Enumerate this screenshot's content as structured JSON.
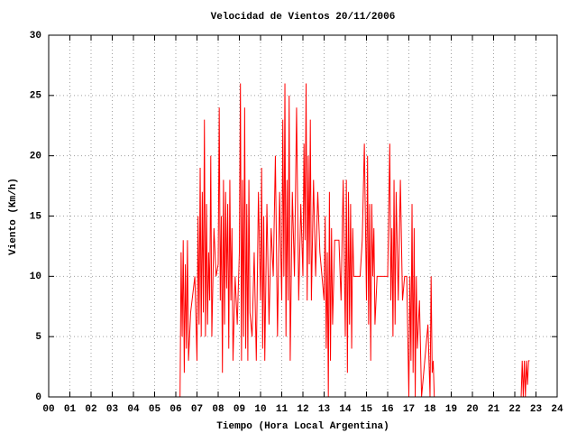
{
  "chart_data": {
    "type": "line",
    "title": "Velocidad de Vientos 20/11/2006",
    "x_label": "Tiempo (Hora Local Argentina)",
    "y_label": "Viento (Km/h)",
    "grid": true,
    "xlim": [
      0,
      24
    ],
    "ylim": [
      0,
      30
    ],
    "yticks": [
      0,
      5,
      10,
      15,
      20,
      25,
      30
    ],
    "xticks": [
      {
        "value": 0,
        "label": "00"
      },
      {
        "value": 1,
        "label": "01"
      },
      {
        "value": 2,
        "label": "02"
      },
      {
        "value": 3,
        "label": "03"
      },
      {
        "value": 4,
        "label": "04"
      },
      {
        "value": 5,
        "label": "05"
      },
      {
        "value": 6,
        "label": "06"
      },
      {
        "value": 7,
        "label": "07"
      },
      {
        "value": 8,
        "label": "08"
      },
      {
        "value": 9,
        "label": "09"
      },
      {
        "value": 10,
        "label": "10"
      },
      {
        "value": 11,
        "label": "11"
      },
      {
        "value": 12,
        "label": "12"
      },
      {
        "value": 13,
        "label": "13"
      },
      {
        "value": 14,
        "label": "14"
      },
      {
        "value": 15,
        "label": "15"
      },
      {
        "value": 16,
        "label": "16"
      },
      {
        "value": 17,
        "label": "17"
      },
      {
        "value": 18,
        "label": "18"
      },
      {
        "value": 19,
        "label": "19"
      },
      {
        "value": 20,
        "label": "20"
      },
      {
        "value": 21,
        "label": "21"
      },
      {
        "value": 22,
        "label": "22"
      },
      {
        "value": 23,
        "label": "23"
      },
      {
        "value": 24,
        "label": "24"
      }
    ],
    "x": [
      6.2,
      6.25,
      6.3,
      6.35,
      6.4,
      6.45,
      6.5,
      6.55,
      6.6,
      6.7,
      6.9,
      7.0,
      7.05,
      7.1,
      7.15,
      7.2,
      7.25,
      7.3,
      7.35,
      7.4,
      7.45,
      7.5,
      7.55,
      7.6,
      7.65,
      7.7,
      7.8,
      7.9,
      8.0,
      8.05,
      8.1,
      8.15,
      8.2,
      8.25,
      8.3,
      8.35,
      8.4,
      8.45,
      8.5,
      8.55,
      8.6,
      8.65,
      8.7,
      8.8,
      8.9,
      9.0,
      9.05,
      9.1,
      9.15,
      9.2,
      9.25,
      9.3,
      9.35,
      9.4,
      9.45,
      9.5,
      9.6,
      9.7,
      9.8,
      9.9,
      10.0,
      10.05,
      10.1,
      10.15,
      10.2,
      10.3,
      10.4,
      10.5,
      10.6,
      10.7,
      10.8,
      10.9,
      11.0,
      11.05,
      11.1,
      11.15,
      11.2,
      11.25,
      11.3,
      11.35,
      11.4,
      11.5,
      11.6,
      11.7,
      11.8,
      11.9,
      12.0,
      12.05,
      12.1,
      12.15,
      12.2,
      12.25,
      12.3,
      12.35,
      12.4,
      12.5,
      12.6,
      12.7,
      12.8,
      13.0,
      13.05,
      13.1,
      13.15,
      13.2,
      13.25,
      13.3,
      13.35,
      13.4,
      13.5,
      13.6,
      13.7,
      13.8,
      13.9,
      14.0,
      14.05,
      14.1,
      14.15,
      14.2,
      14.25,
      14.3,
      14.35,
      14.4,
      14.5,
      14.6,
      14.7,
      14.8,
      14.9,
      15.0,
      15.05,
      15.1,
      15.15,
      15.2,
      15.25,
      15.3,
      15.35,
      15.4,
      15.5,
      15.7,
      15.9,
      16.0,
      16.1,
      16.15,
      16.2,
      16.25,
      16.3,
      16.35,
      16.4,
      16.5,
      16.6,
      16.7,
      16.8,
      16.9,
      17.0,
      17.05,
      17.1,
      17.15,
      17.2,
      17.25,
      17.3,
      17.35,
      17.4,
      17.5,
      17.6,
      17.7,
      17.8,
      17.9,
      18.0,
      18.05,
      18.1,
      18.15,
      18.2,
      18.3,
      20.0,
      22.3,
      22.35,
      22.4,
      22.45,
      22.5,
      22.55,
      22.6,
      22.65,
      22.7
    ],
    "series": [
      {
        "color": "#ff0000",
        "values": [
          0,
          12,
          5,
          13,
          2,
          11,
          4,
          13,
          3,
          7,
          10,
          3,
          15,
          6,
          19,
          5,
          17,
          7,
          23,
          5,
          16,
          6,
          12,
          8,
          20,
          5,
          14,
          10,
          11,
          24,
          8,
          15,
          2,
          18,
          6,
          17,
          9,
          16,
          4,
          18,
          8,
          14,
          3,
          10,
          6,
          12,
          26,
          3,
          18,
          5,
          24,
          4,
          16,
          3,
          18,
          7,
          5,
          12,
          3,
          17,
          8,
          19,
          4,
          15,
          3,
          16,
          6,
          14,
          10,
          20,
          5,
          17,
          8,
          23,
          10,
          26,
          5,
          18,
          8,
          25,
          3,
          17,
          10,
          24,
          8,
          16,
          10,
          21,
          13,
          26,
          8,
          20,
          11,
          23,
          8,
          18,
          10,
          17,
          12,
          8,
          15,
          4,
          12,
          0,
          17,
          3,
          14,
          6,
          13,
          13,
          13,
          8,
          18,
          5,
          18,
          2,
          17,
          6,
          16,
          4,
          14,
          10,
          10,
          10,
          10,
          13,
          21,
          8,
          20,
          6,
          16,
          3,
          16,
          10,
          14,
          6,
          10,
          10,
          10,
          10,
          21,
          8,
          14,
          5,
          18,
          6,
          17,
          8,
          18,
          8,
          10,
          10,
          0,
          10,
          3,
          16,
          2,
          14,
          0,
          10,
          4,
          8,
          0,
          2,
          4,
          6,
          0,
          10,
          2,
          3,
          0,
          0,
          0,
          0,
          3,
          0,
          3,
          0,
          3,
          1,
          3,
          3
        ]
      }
    ]
  }
}
